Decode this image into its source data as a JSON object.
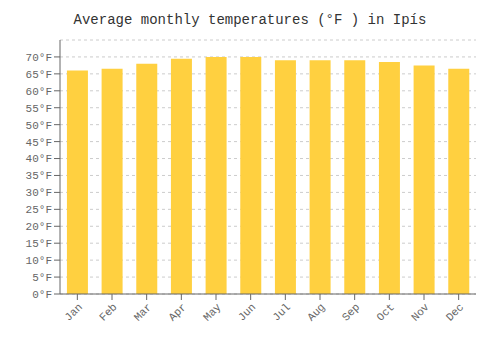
{
  "chart_data": {
    "type": "bar",
    "title": "Average monthly temperatures (°F ) in Ipís",
    "categories": [
      "Jan",
      "Feb",
      "Mar",
      "Apr",
      "May",
      "Jun",
      "Jul",
      "Aug",
      "Sep",
      "Oct",
      "Nov",
      "Dec"
    ],
    "values": [
      66,
      66.5,
      68,
      69.5,
      70,
      70,
      69,
      69,
      69,
      68.5,
      67.5,
      66.5
    ],
    "color": "#FFD040",
    "ylim": [
      0,
      75
    ],
    "yticks": [
      {
        "value": 0,
        "label": "0°F"
      },
      {
        "value": 5,
        "label": "5°F"
      },
      {
        "value": 10,
        "label": "10°F"
      },
      {
        "value": 15,
        "label": "15°F"
      },
      {
        "value": 20,
        "label": "20°F"
      },
      {
        "value": 25,
        "label": "25°F"
      },
      {
        "value": 30,
        "label": "30°F"
      },
      {
        "value": 35,
        "label": "35°F"
      },
      {
        "value": 40,
        "label": "40°F"
      },
      {
        "value": 45,
        "label": "45°F"
      },
      {
        "value": 50,
        "label": "50°F"
      },
      {
        "value": 55,
        "label": "55°F"
      },
      {
        "value": 60,
        "label": "60°F"
      },
      {
        "value": 65,
        "label": "65°F"
      },
      {
        "value": 70,
        "label": "70°F"
      }
    ],
    "grid": true
  }
}
